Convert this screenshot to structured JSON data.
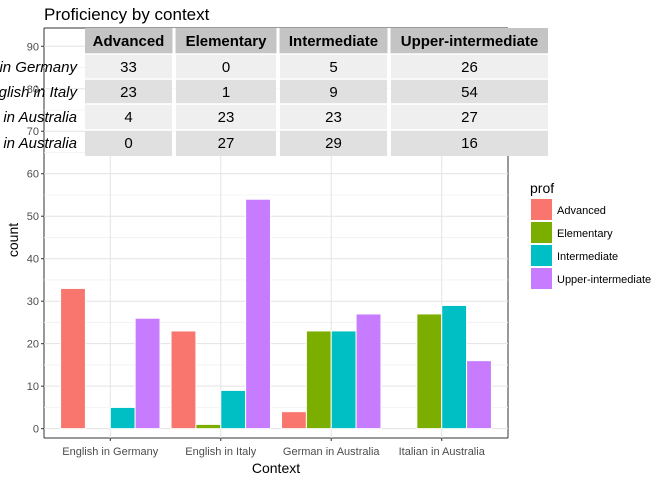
{
  "chart_data": {
    "type": "bar",
    "title": "Proficiency by context",
    "xlabel": "Context",
    "ylabel": "count",
    "categories": [
      "English in Germany",
      "English in Italy",
      "German in Australia",
      "Italian in Australia"
    ],
    "series": [
      {
        "name": "Advanced",
        "color": "#F8766D",
        "values": [
          33,
          23,
          4,
          0
        ]
      },
      {
        "name": "Elementary",
        "color": "#7CAE00",
        "values": [
          0,
          1,
          23,
          27
        ]
      },
      {
        "name": "Intermediate",
        "color": "#00BFC4",
        "values": [
          5,
          9,
          23,
          29
        ]
      },
      {
        "name": "Upper-intermediate",
        "color": "#C77CFF",
        "values": [
          26,
          54,
          27,
          16
        ]
      }
    ],
    "ylim": [
      0,
      90
    ],
    "yticks": [
      0,
      10,
      20,
      30,
      40,
      50,
      60,
      70,
      80,
      90
    ],
    "grid": true,
    "legend": {
      "title": "prof",
      "placement": "right"
    },
    "table": {
      "columns": [
        "Advanced",
        "Elementary",
        "Intermediate",
        "Upper-intermediate"
      ],
      "rows": [
        {
          "label": "English in Germany",
          "values": [
            33,
            0,
            5,
            26
          ]
        },
        {
          "label": "English in Italy",
          "values": [
            23,
            1,
            9,
            54
          ]
        },
        {
          "label": "German in Australia",
          "values": [
            4,
            23,
            23,
            27
          ]
        },
        {
          "label": "Italian in Australia",
          "values": [
            0,
            27,
            29,
            16
          ]
        }
      ]
    }
  }
}
